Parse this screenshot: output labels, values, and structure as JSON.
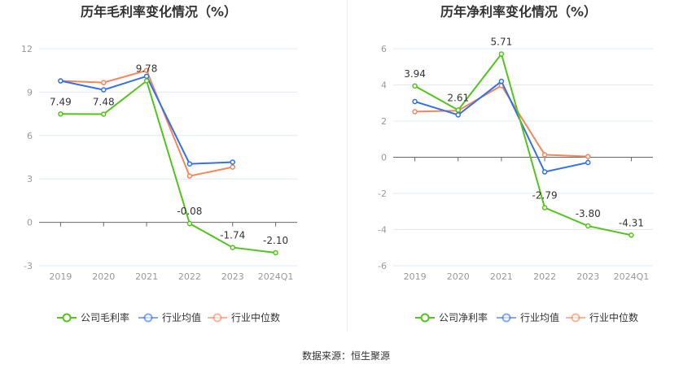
{
  "source": "数据来源：恒生聚源",
  "colors": {
    "company": "#52c41a",
    "avg": "#3370eb",
    "median": "#f5855b",
    "grid": "#e3e8f3",
    "axis": "#666666"
  },
  "chart_data": [
    {
      "type": "line",
      "title": "历年毛利率变化情况（%）",
      "categories": [
        "2019",
        "2020",
        "2021",
        "2022",
        "2023",
        "2024Q1"
      ],
      "ylim": [
        -3,
        12
      ],
      "yticks": [
        -3,
        0,
        3,
        6,
        9,
        12
      ],
      "grid": true,
      "legend_position": "bottom",
      "series": [
        {
          "name": "公司毛利率",
          "values": [
            7.49,
            7.48,
            9.78,
            -0.08,
            -1.74,
            -2.1
          ],
          "labels": [
            "7.49",
            "7.48",
            "9.78",
            "-0.08",
            "-1.74",
            "-2.10"
          ]
        },
        {
          "name": "行业均值",
          "values": [
            9.78,
            9.16,
            10.1,
            4.04,
            4.16,
            null
          ]
        },
        {
          "name": "行业中位数",
          "values": [
            9.78,
            9.66,
            10.5,
            3.2,
            3.82,
            null
          ]
        }
      ]
    },
    {
      "type": "line",
      "title": "历年净利率变化情况（%）",
      "categories": [
        "2019",
        "2020",
        "2021",
        "2022",
        "2023",
        "2024Q1"
      ],
      "ylim": [
        -6,
        6
      ],
      "yticks": [
        -6,
        -4,
        -2,
        0,
        2,
        4,
        6
      ],
      "grid": true,
      "legend_position": "bottom",
      "series": [
        {
          "name": "公司净利率",
          "values": [
            3.94,
            2.61,
            5.71,
            -2.79,
            -3.8,
            -4.31
          ],
          "labels": [
            "3.94",
            "2.61",
            "5.71",
            "-2.79",
            "-3.80",
            "-4.31"
          ]
        },
        {
          "name": "行业均值",
          "values": [
            3.08,
            2.34,
            4.2,
            -0.81,
            -0.29,
            null
          ]
        },
        {
          "name": "行业中位数",
          "values": [
            2.52,
            2.58,
            3.96,
            0.14,
            0.04,
            null
          ]
        }
      ]
    }
  ]
}
